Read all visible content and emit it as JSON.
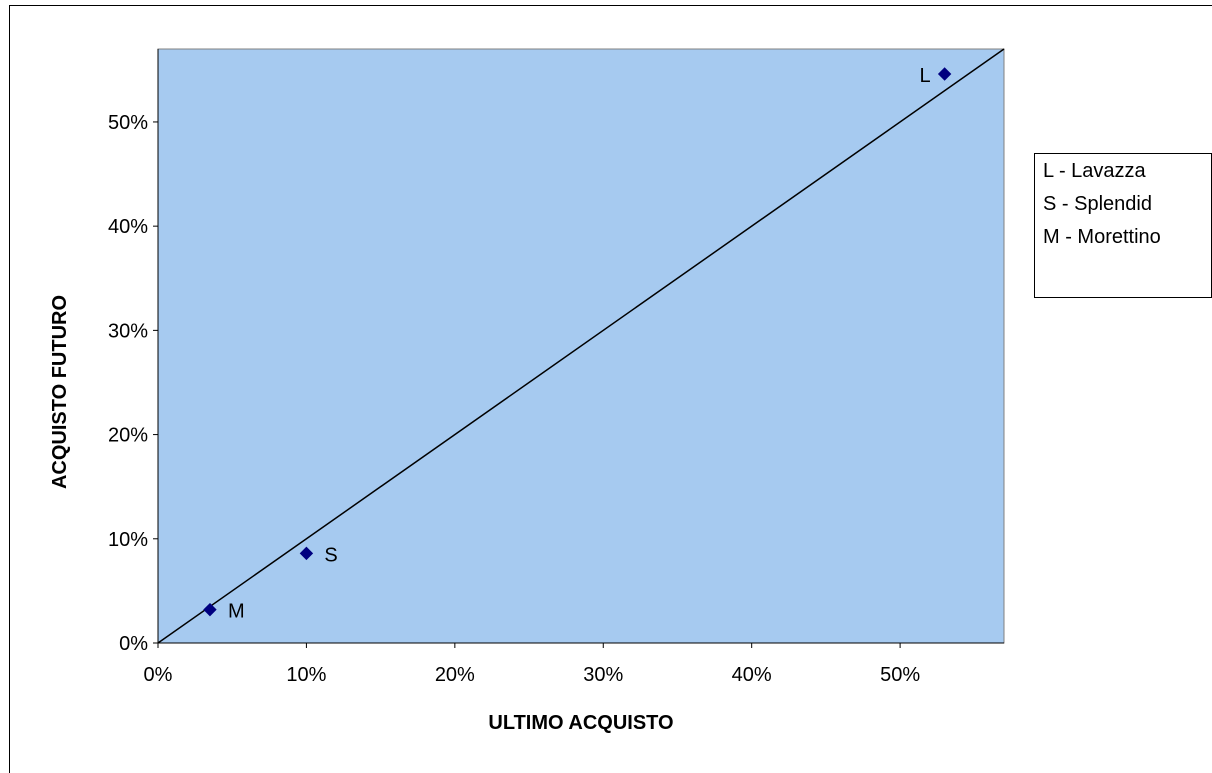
{
  "chart_data": {
    "type": "scatter",
    "xlabel": "ULTIMO ACQUISTO",
    "ylabel": "ACQUISTO FUTURO",
    "xlim": [
      0,
      0.57
    ],
    "ylim": [
      0,
      0.57
    ],
    "x_ticks": [
      "0%",
      "10%",
      "20%",
      "30%",
      "40%",
      "50%"
    ],
    "y_ticks": [
      "0%",
      "10%",
      "20%",
      "30%",
      "40%",
      "50%"
    ],
    "grid": false,
    "plot_background": "#a6caf0",
    "marker_color": "#000080",
    "points": [
      {
        "label": "L",
        "x": 0.53,
        "y": 0.546
      },
      {
        "label": "S",
        "x": 0.1,
        "y": 0.086
      },
      {
        "label": "M",
        "x": 0.035,
        "y": 0.032
      }
    ],
    "reference_line": {
      "from": [
        0,
        0
      ],
      "to": [
        0.57,
        0.57
      ]
    }
  },
  "legend": {
    "items": [
      "L - Lavazza",
      "S - Splendid",
      "M - Morettino"
    ]
  }
}
